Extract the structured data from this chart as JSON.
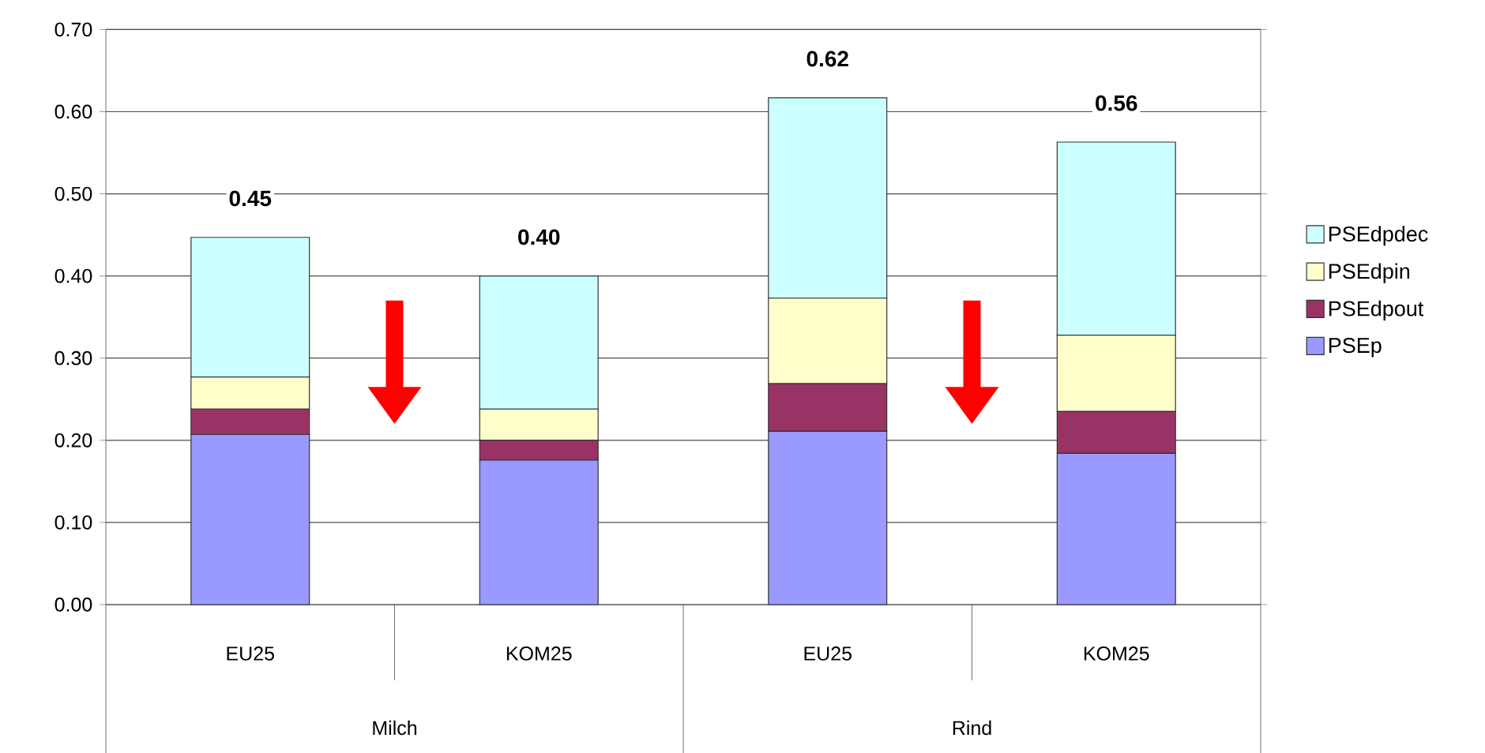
{
  "chart_data": {
    "type": "bar",
    "stacked": true,
    "categories": [
      "EU25",
      "KOM25",
      "EU25",
      "KOM25"
    ],
    "series": [
      {
        "name": "PSEp",
        "color": "#9999ff",
        "values": [
          0.207,
          0.176,
          0.211,
          0.184
        ]
      },
      {
        "name": "PSEdpout",
        "color": "#993366",
        "values": [
          0.031,
          0.024,
          0.058,
          0.051
        ]
      },
      {
        "name": "PSEdpin",
        "color": "#ffffcc",
        "values": [
          0.039,
          0.038,
          0.104,
          0.093
        ]
      },
      {
        "name": "PSEdpdec",
        "color": "#ccffff",
        "values": [
          0.17,
          0.162,
          0.244,
          0.235
        ]
      }
    ],
    "totals": [
      "0.45",
      "0.40",
      "0.62",
      "0.56"
    ],
    "annotations": [
      "Milch",
      "Rind"
    ],
    "ylim": [
      0,
      0.7
    ],
    "yticks": [
      {
        "value": 0,
        "label": "0.00"
      },
      {
        "value": 0.1,
        "label": "0.10"
      },
      {
        "value": 0.2,
        "label": "0.20"
      },
      {
        "value": 0.3,
        "label": "0.30"
      },
      {
        "value": 0.4,
        "label": "0.40"
      },
      {
        "value": 0.5,
        "label": "0.50"
      },
      {
        "value": 0.6,
        "label": "0.60"
      },
      {
        "value": 0.7,
        "label": "0.70"
      }
    ],
    "grid": "y",
    "legend": "right"
  }
}
